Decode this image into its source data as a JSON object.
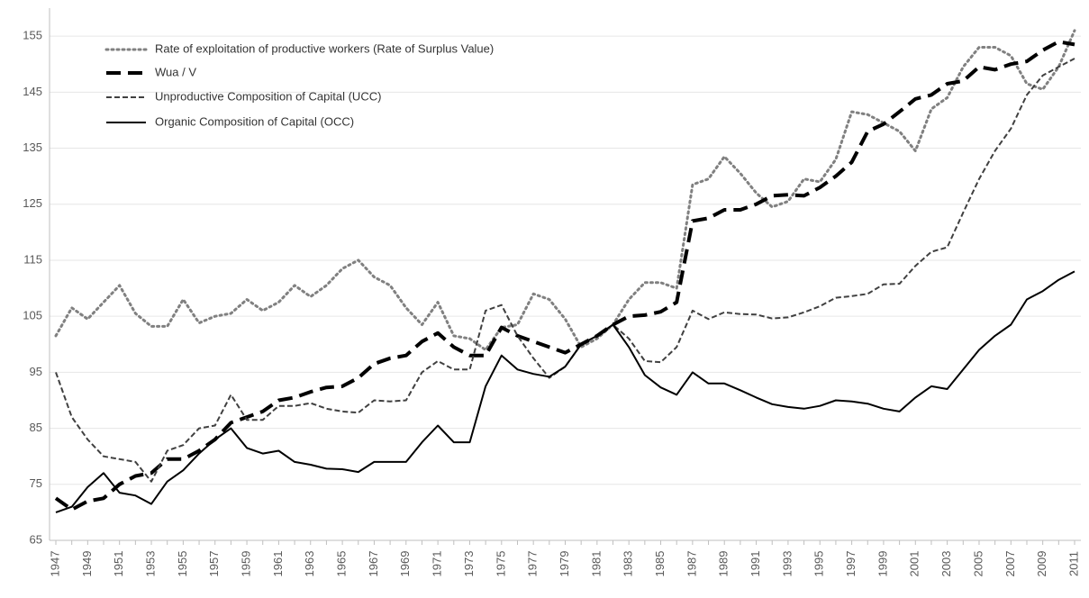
{
  "chart_data": {
    "type": "line",
    "categories": [
      "1947",
      null,
      "1949",
      null,
      "1951",
      null,
      "1953",
      null,
      "1955",
      null,
      "1957",
      null,
      "1959",
      null,
      "1961",
      null,
      "1963",
      null,
      "1965",
      null,
      "1967",
      null,
      "1969",
      null,
      "1971",
      null,
      "1973",
      null,
      "1975",
      null,
      "1977",
      null,
      "1979",
      null,
      "1981",
      null,
      "1983",
      null,
      "1985",
      null,
      "1987",
      null,
      "1989",
      null,
      "1991",
      null,
      "1993",
      null,
      "1995",
      null,
      "1997",
      null,
      "1999",
      null,
      "2001",
      null,
      "2003",
      null,
      "2005",
      null,
      "2007",
      null,
      "2009",
      null,
      "2011"
    ],
    "series": [
      {
        "name": "Rate of exploitation of productive workers (Rate of Surplus Value)",
        "color": "#808080",
        "style": "dotted",
        "values": [
          101.5,
          106.5,
          104.5,
          107.5,
          110.5,
          105.5,
          103.2,
          103.2,
          108,
          103.8,
          105,
          105.5,
          108,
          106,
          107.5,
          110.5,
          108.5,
          110.5,
          113.5,
          115,
          112,
          110.5,
          106.5,
          103.5,
          107.5,
          101.5,
          101,
          99,
          103,
          103.5,
          109,
          108,
          104.5,
          99.5,
          101,
          103.5,
          108,
          111,
          111,
          110,
          128.5,
          129.5,
          133.5,
          130.5,
          127,
          124.5,
          125.5,
          129.5,
          129,
          133,
          141.5,
          141,
          139.5,
          138,
          134.5,
          142,
          144,
          149.5,
          153,
          153,
          151.5,
          146.5,
          145.5,
          149.5,
          156
        ]
      },
      {
        "name": "Wua / V",
        "color": "#000000",
        "style": "longdash",
        "values": [
          72.5,
          70.5,
          72,
          72.5,
          75,
          76.5,
          77,
          79.5,
          79.5,
          81,
          83,
          86,
          87,
          88,
          90,
          90.5,
          91.5,
          92.3,
          92.5,
          94,
          96.5,
          97.5,
          98,
          100.5,
          102,
          99.5,
          98,
          98,
          103,
          101.5,
          100.5,
          99.5,
          98.5,
          100,
          101.5,
          103.5,
          105,
          105.2,
          105.8,
          107.5,
          122,
          122.5,
          124,
          124,
          125,
          126.5,
          126.7,
          126.5,
          128,
          130,
          132.5,
          138,
          139.3,
          141.5,
          143.8,
          144.5,
          146.5,
          147,
          149.5,
          149,
          150,
          150.5,
          152.5,
          154,
          153.5
        ]
      },
      {
        "name": "Unproductive Composition of Capital (UCC)",
        "color": "#404040",
        "style": "shortdash",
        "values": [
          95,
          87,
          83,
          80,
          79.5,
          79,
          75.5,
          81,
          82,
          85,
          85.5,
          91,
          86.5,
          86.5,
          89,
          89,
          89.5,
          88.5,
          88,
          87.8,
          90,
          89.8,
          90,
          95,
          97,
          95.5,
          95.5,
          106,
          107,
          101.5,
          97.5,
          94,
          96,
          100,
          101.5,
          103.5,
          101,
          97,
          96.8,
          99.5,
          106,
          104.5,
          105.7,
          105.4,
          105.3,
          104.6,
          104.8,
          105.7,
          106.8,
          108.3,
          108.6,
          109,
          110.7,
          110.8,
          114,
          116.5,
          117.3,
          123.5,
          129.5,
          134.5,
          138.5,
          144.5,
          148,
          149.5,
          151
        ]
      },
      {
        "name": "Organic Composition of Capital (OCC)",
        "color": "#000000",
        "style": "solid",
        "values": [
          70,
          71,
          74.5,
          77,
          73.5,
          73,
          71.5,
          75.5,
          77.5,
          80.5,
          83,
          85,
          81.5,
          80.5,
          81,
          79,
          78.5,
          77.8,
          77.7,
          77.2,
          79,
          79,
          79,
          82.5,
          85.5,
          82.5,
          82.5,
          92.5,
          98,
          95.5,
          94.7,
          94.2,
          96,
          100,
          101.5,
          103.5,
          99.5,
          94.5,
          92.3,
          91,
          95,
          93,
          93,
          91.8,
          90.5,
          89.3,
          88.8,
          88.5,
          89,
          90,
          89.8,
          89.4,
          88.5,
          88,
          90.5,
          92.5,
          92,
          95.5,
          99,
          101.5,
          103.5,
          108,
          109.5,
          111.5,
          113
        ]
      }
    ],
    "ylim": [
      65,
      160
    ],
    "yticks": [
      65,
      75,
      85,
      95,
      105,
      115,
      125,
      135,
      145,
      155
    ],
    "grid": true,
    "legend": "upper-left"
  }
}
